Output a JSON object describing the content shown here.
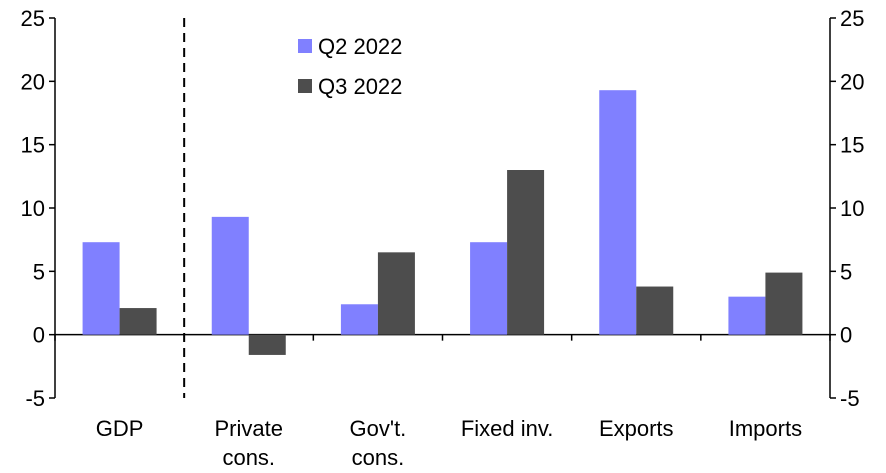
{
  "chart_data": {
    "type": "bar",
    "categories": [
      [
        "GDP"
      ],
      [
        "Private",
        "cons."
      ],
      [
        "Gov't.",
        "cons."
      ],
      [
        "Fixed inv."
      ],
      [
        "Exports"
      ],
      [
        "Imports"
      ]
    ],
    "series": [
      {
        "name": "Q2 2022",
        "color": "#8080ff",
        "values": [
          7.3,
          9.3,
          2.4,
          7.3,
          19.3,
          3.0
        ]
      },
      {
        "name": "Q3 2022",
        "color": "#4d4d4d",
        "values": [
          2.1,
          -1.6,
          6.5,
          13.0,
          3.8,
          4.9
        ]
      }
    ],
    "ylim": [
      -5,
      25
    ],
    "yticks": [
      -5,
      0,
      5,
      10,
      15,
      20,
      25
    ],
    "y_axis_sides": [
      "left",
      "right"
    ],
    "divider_after_category": 0,
    "divider_style": "dashed",
    "legend_placement": "top-center",
    "grid": false
  }
}
